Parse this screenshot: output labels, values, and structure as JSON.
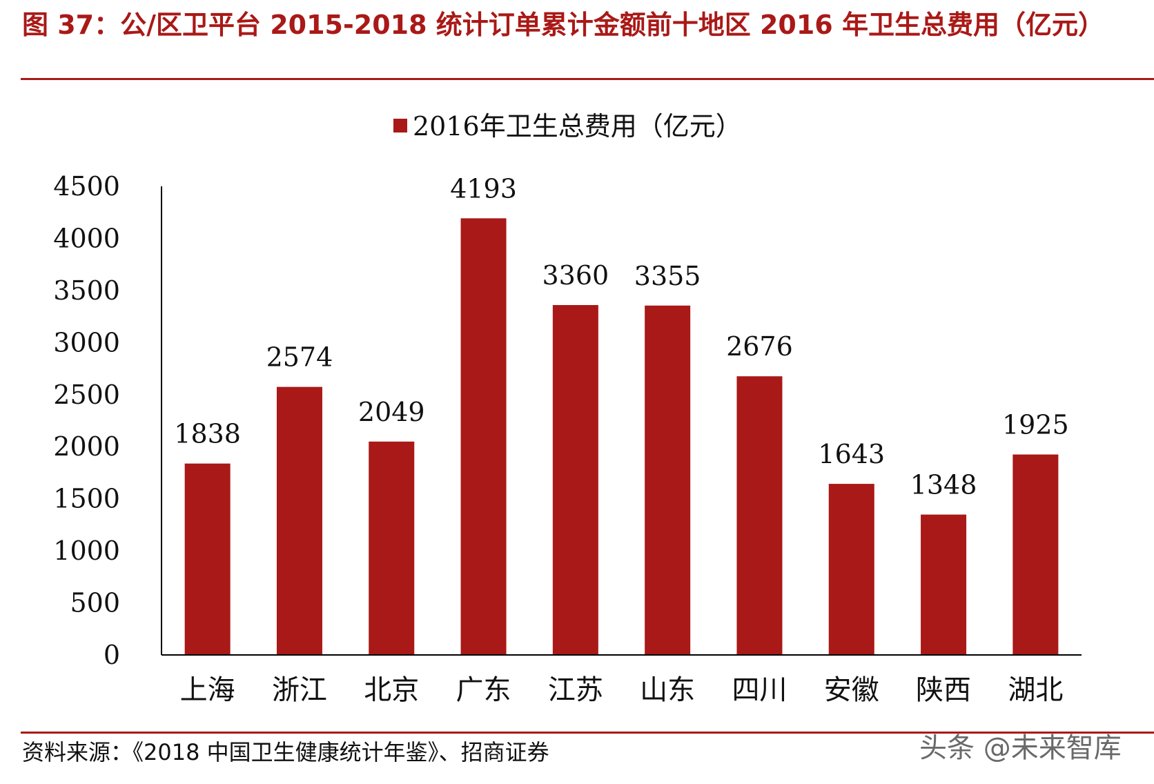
{
  "figure_title": "图 37：公/区卫平台 2015-2018 统计订单累计金额前十地区 2016 年卫生总费用（亿元）",
  "source": "资料来源：《2018 中国卫生健康统计年鉴》、招商证券",
  "watermark": "头条 @未来智库",
  "colors": {
    "bar": "#a91917",
    "title": "#a91917",
    "axis": "#000000"
  },
  "chart_data": {
    "type": "bar",
    "categories": [
      "上海",
      "浙江",
      "北京",
      "广东",
      "江苏",
      "山东",
      "四川",
      "安徽",
      "陕西",
      "湖北"
    ],
    "series": [
      {
        "name": "2016年卫生总费用（亿元）",
        "values": [
          1838,
          2574,
          2049,
          4193,
          3360,
          3355,
          2676,
          1643,
          1348,
          1925
        ]
      }
    ],
    "ylim": [
      0,
      4500
    ],
    "yticks": [
      "0",
      "500",
      "1000",
      "1500",
      "2000",
      "2500",
      "3000",
      "3500",
      "4000",
      "4500"
    ],
    "data_labels": [
      "1838",
      "2574",
      "2049",
      "4193",
      "3360",
      "3355",
      "2676",
      "1643",
      "1348",
      "1925"
    ],
    "legend_position": "top-center",
    "grid": false
  }
}
